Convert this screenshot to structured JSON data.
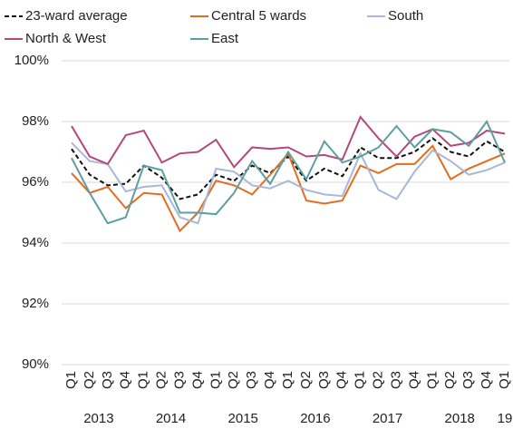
{
  "chart_data": {
    "type": "line",
    "categories": [
      "Q1",
      "Q2",
      "Q3",
      "Q4",
      "Q1",
      "Q2",
      "Q3",
      "Q4",
      "Q1",
      "Q2",
      "Q3",
      "Q4",
      "Q1",
      "Q2",
      "Q3",
      "Q4",
      "Q1",
      "Q2",
      "Q3",
      "Q4",
      "Q1",
      "Q2",
      "Q3",
      "Q4",
      "Q1"
    ],
    "years": [
      "2013",
      "2014",
      "2015",
      "2016",
      "2017",
      "2018",
      "19"
    ],
    "ylim": [
      90,
      100
    ],
    "yticks": [
      {
        "value": 90,
        "label": "90%"
      },
      {
        "value": 92,
        "label": "92%"
      },
      {
        "value": 94,
        "label": "94%"
      },
      {
        "value": 96,
        "label": "96%"
      },
      {
        "value": 98,
        "label": "98%"
      },
      {
        "value": 100,
        "label": "100%"
      }
    ],
    "grid": true,
    "legend": "top",
    "series": [
      {
        "name": "23-ward average",
        "color": "#111111",
        "style": "dashed",
        "values": [
          97.1,
          96.25,
          95.9,
          95.95,
          96.55,
          96.15,
          95.45,
          95.6,
          96.25,
          96.05,
          96.55,
          96.3,
          96.85,
          96.05,
          96.45,
          96.2,
          97.15,
          96.8,
          96.8,
          97.0,
          97.45,
          97.0,
          96.85,
          97.35,
          97.0
        ]
      },
      {
        "name": "Central 5 wards",
        "color": "#e46c1f",
        "style": "solid",
        "values": [
          96.3,
          95.65,
          95.85,
          95.15,
          95.65,
          95.6,
          94.4,
          95.0,
          96.05,
          95.9,
          95.6,
          96.25,
          96.95,
          95.4,
          95.3,
          95.4,
          96.55,
          96.3,
          96.6,
          96.6,
          97.2,
          96.1,
          96.45,
          96.7,
          96.95
        ]
      },
      {
        "name": "South",
        "color": "#a9b8d8",
        "style": "solid",
        "values": [
          97.3,
          96.7,
          96.6,
          95.7,
          95.85,
          95.9,
          94.85,
          94.65,
          96.45,
          96.35,
          95.9,
          95.8,
          96.05,
          95.75,
          95.6,
          95.55,
          96.95,
          95.75,
          95.45,
          96.35,
          97.05,
          96.7,
          96.25,
          96.4,
          96.65
        ]
      },
      {
        "name": "North & West",
        "color": "#b5477a",
        "style": "solid",
        "values": [
          97.85,
          96.85,
          96.6,
          97.55,
          97.7,
          96.65,
          96.95,
          97.0,
          97.4,
          96.5,
          97.15,
          97.1,
          97.15,
          96.85,
          96.9,
          96.75,
          98.15,
          97.45,
          96.85,
          97.5,
          97.75,
          97.2,
          97.3,
          97.7,
          97.6
        ]
      },
      {
        "name": "East",
        "color": "#5d9ea0",
        "style": "solid",
        "values": [
          96.8,
          95.65,
          94.65,
          94.85,
          96.55,
          96.4,
          95.0,
          95.0,
          94.95,
          95.65,
          96.7,
          95.95,
          97.0,
          96.1,
          97.35,
          96.65,
          96.85,
          97.15,
          97.85,
          97.15,
          97.75,
          97.65,
          97.2,
          98.0,
          96.65
        ]
      }
    ]
  }
}
